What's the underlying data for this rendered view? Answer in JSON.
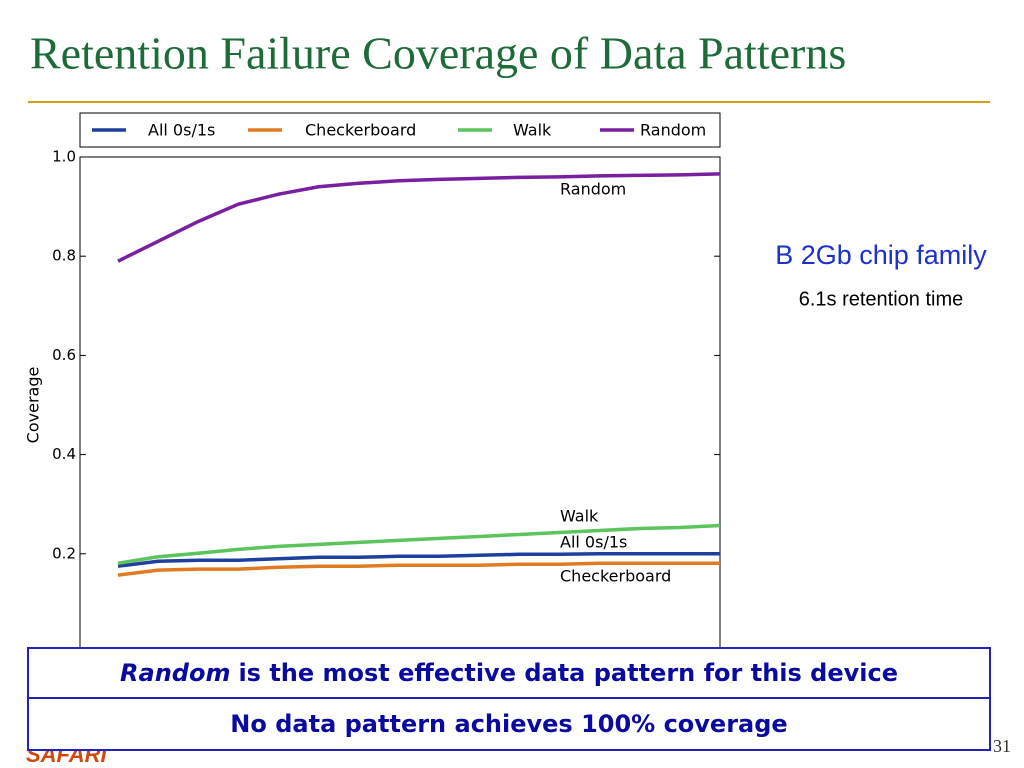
{
  "title": "Retention Failure Coverage of Data Patterns",
  "chart_data": {
    "type": "line",
    "ylabel": "Coverage",
    "categories": [
      null,
      null,
      null,
      null,
      null,
      null,
      null,
      null,
      null,
      null,
      null,
      null,
      null,
      null,
      null,
      null
    ],
    "series": [
      {
        "name": "All 0s/1s",
        "color": "#1f3f9f",
        "values": [
          0.175,
          0.185,
          0.187,
          0.187,
          0.19,
          0.193,
          0.193,
          0.195,
          0.195,
          0.197,
          0.199,
          0.199,
          0.2,
          0.2,
          0.2,
          0.2
        ]
      },
      {
        "name": "Checkerboard",
        "color": "#e07b22",
        "values": [
          0.157,
          0.167,
          0.169,
          0.169,
          0.173,
          0.175,
          0.175,
          0.177,
          0.177,
          0.177,
          0.179,
          0.179,
          0.181,
          0.181,
          0.181,
          0.181
        ]
      },
      {
        "name": "Walk",
        "color": "#5cc45c",
        "values": [
          0.181,
          0.194,
          0.201,
          0.209,
          0.215,
          0.219,
          0.223,
          0.227,
          0.231,
          0.235,
          0.239,
          0.243,
          0.247,
          0.251,
          0.253,
          0.257
        ]
      },
      {
        "name": "Random",
        "color": "#7a1fa0",
        "values": [
          0.79,
          0.83,
          0.87,
          0.905,
          0.925,
          0.94,
          0.947,
          0.952,
          0.955,
          0.957,
          0.959,
          0.96,
          0.962,
          0.963,
          0.964,
          0.966
        ]
      }
    ],
    "ylim": [
      0,
      1
    ],
    "yticks": [
      0.2,
      0.4,
      0.6,
      0.8,
      {
        "value": 1,
        "label": "1.0"
      }
    ],
    "annotations": [
      "Random",
      "Walk",
      "All 0s/1s",
      "Checkerboard"
    ]
  },
  "side_note": {
    "title": "B 2Gb chip family",
    "subtitle": "6.1s retention time"
  },
  "callouts": [
    {
      "emphasis": "Random",
      "text": "is the most effective data pattern for this device"
    },
    {
      "text": "No data pattern achieves 100% coverage"
    }
  ],
  "footer": {
    "logo": "SAFARI",
    "page": "31"
  }
}
